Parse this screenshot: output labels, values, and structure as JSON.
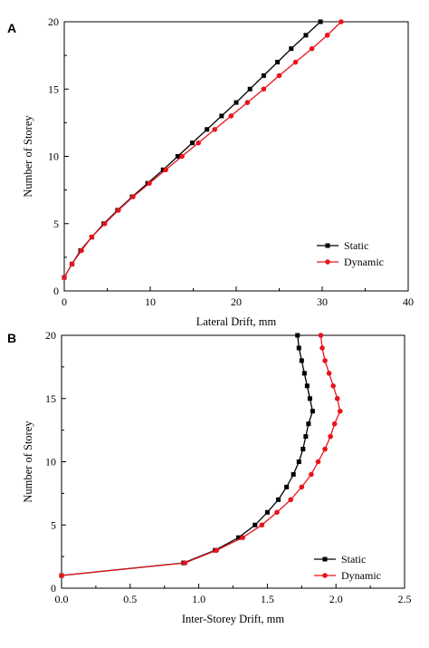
{
  "chart_data": [
    {
      "panel": "A",
      "type": "line",
      "xlabel": "Lateral Drift, mm",
      "ylabel": "Number of Storey",
      "xlim": [
        0,
        40
      ],
      "ylim": [
        0,
        20
      ],
      "xticks": [
        "0",
        "10",
        "20",
        "30",
        "40"
      ],
      "yticks": [
        "0",
        "5",
        "10",
        "15",
        "20"
      ],
      "legend_position": "bottom-right",
      "grid": false,
      "series": [
        {
          "name": "Static",
          "color": "#000000",
          "marker": "square",
          "points": [
            {
              "x": 0,
              "y": 1
            },
            {
              "x": 0.9,
              "y": 2
            },
            {
              "x": 1.9,
              "y": 3
            },
            {
              "x": 3.2,
              "y": 4
            },
            {
              "x": 4.6,
              "y": 5
            },
            {
              "x": 6.2,
              "y": 6
            },
            {
              "x": 7.9,
              "y": 7
            },
            {
              "x": 9.7,
              "y": 8
            },
            {
              "x": 11.5,
              "y": 9
            },
            {
              "x": 13.2,
              "y": 10
            },
            {
              "x": 14.9,
              "y": 11
            },
            {
              "x": 16.6,
              "y": 12
            },
            {
              "x": 18.3,
              "y": 13
            },
            {
              "x": 20,
              "y": 14
            },
            {
              "x": 21.6,
              "y": 15
            },
            {
              "x": 23.2,
              "y": 16
            },
            {
              "x": 24.8,
              "y": 17
            },
            {
              "x": 26.4,
              "y": 18
            },
            {
              "x": 28.1,
              "y": 19
            },
            {
              "x": 29.8,
              "y": 20
            }
          ]
        },
        {
          "name": "Dynamic",
          "color": "#e8141c",
          "marker": "circle",
          "points": [
            {
              "x": 0,
              "y": 1
            },
            {
              "x": 0.9,
              "y": 2
            },
            {
              "x": 2.0,
              "y": 3
            },
            {
              "x": 3.2,
              "y": 4
            },
            {
              "x": 4.7,
              "y": 5
            },
            {
              "x": 6.3,
              "y": 6
            },
            {
              "x": 8.0,
              "y": 7
            },
            {
              "x": 9.9,
              "y": 8
            },
            {
              "x": 11.8,
              "y": 9
            },
            {
              "x": 13.7,
              "y": 10
            },
            {
              "x": 15.6,
              "y": 11
            },
            {
              "x": 17.5,
              "y": 12
            },
            {
              "x": 19.4,
              "y": 13
            },
            {
              "x": 21.3,
              "y": 14
            },
            {
              "x": 23.2,
              "y": 15
            },
            {
              "x": 25.0,
              "y": 16
            },
            {
              "x": 26.9,
              "y": 17
            },
            {
              "x": 28.8,
              "y": 18
            },
            {
              "x": 30.6,
              "y": 19
            },
            {
              "x": 32.2,
              "y": 20
            }
          ]
        }
      ]
    },
    {
      "panel": "B",
      "type": "line",
      "xlabel": "Inter-Storey Drift, mm",
      "ylabel": "Number of Storey",
      "xlim": [
        0,
        2.5
      ],
      "ylim": [
        0,
        20
      ],
      "xticks": [
        "0.0",
        "0.5",
        "1.0",
        "1.5",
        "2.0",
        "2.5"
      ],
      "yticks": [
        "0",
        "5",
        "10",
        "15",
        "20"
      ],
      "legend_position": "bottom-right",
      "grid": false,
      "series": [
        {
          "name": "Static",
          "color": "#000000",
          "marker": "square",
          "points": [
            {
              "x": 0,
              "y": 1
            },
            {
              "x": 0.89,
              "y": 2
            },
            {
              "x": 1.12,
              "y": 3
            },
            {
              "x": 1.29,
              "y": 4
            },
            {
              "x": 1.41,
              "y": 5
            },
            {
              "x": 1.5,
              "y": 6
            },
            {
              "x": 1.58,
              "y": 7
            },
            {
              "x": 1.64,
              "y": 8
            },
            {
              "x": 1.69,
              "y": 9
            },
            {
              "x": 1.73,
              "y": 10
            },
            {
              "x": 1.76,
              "y": 11
            },
            {
              "x": 1.78,
              "y": 12
            },
            {
              "x": 1.8,
              "y": 13
            },
            {
              "x": 1.83,
              "y": 14
            },
            {
              "x": 1.81,
              "y": 15
            },
            {
              "x": 1.79,
              "y": 16
            },
            {
              "x": 1.77,
              "y": 17
            },
            {
              "x": 1.75,
              "y": 18
            },
            {
              "x": 1.73,
              "y": 19
            },
            {
              "x": 1.72,
              "y": 20
            }
          ]
        },
        {
          "name": "Dynamic",
          "color": "#e8141c",
          "marker": "circle",
          "points": [
            {
              "x": 0,
              "y": 1
            },
            {
              "x": 0.9,
              "y": 2
            },
            {
              "x": 1.13,
              "y": 3
            },
            {
              "x": 1.32,
              "y": 4
            },
            {
              "x": 1.46,
              "y": 5
            },
            {
              "x": 1.57,
              "y": 6
            },
            {
              "x": 1.67,
              "y": 7
            },
            {
              "x": 1.75,
              "y": 8
            },
            {
              "x": 1.82,
              "y": 9
            },
            {
              "x": 1.87,
              "y": 10
            },
            {
              "x": 1.92,
              "y": 11
            },
            {
              "x": 1.96,
              "y": 12
            },
            {
              "x": 1.99,
              "y": 13
            },
            {
              "x": 2.03,
              "y": 14
            },
            {
              "x": 2.01,
              "y": 15
            },
            {
              "x": 1.98,
              "y": 16
            },
            {
              "x": 1.95,
              "y": 17
            },
            {
              "x": 1.92,
              "y": 18
            },
            {
              "x": 1.9,
              "y": 19
            },
            {
              "x": 1.89,
              "y": 20
            }
          ]
        }
      ]
    }
  ]
}
